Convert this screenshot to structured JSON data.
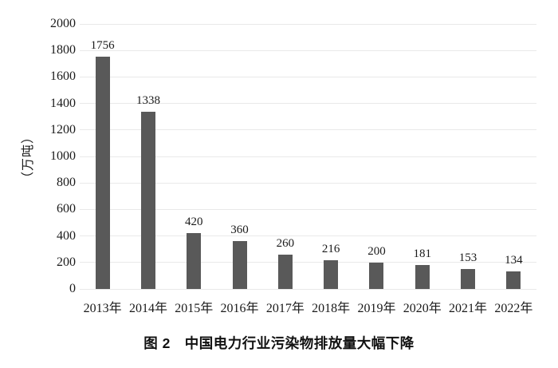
{
  "chart_data": {
    "type": "bar",
    "categories": [
      "2013年",
      "2014年",
      "2015年",
      "2016年",
      "2017年",
      "2018年",
      "2019年",
      "2020年",
      "2021年",
      "2022年"
    ],
    "values": [
      1756,
      1338,
      420,
      360,
      260,
      216,
      200,
      181,
      153,
      134
    ],
    "title": "图 2　中国电力行业污染物排放量大幅下降",
    "xlabel": "",
    "ylabel": "（万吨）",
    "ylim": [
      0,
      2000
    ],
    "ytick_step": 200,
    "grid": true,
    "legend_position": "none",
    "bar_color": "#595959",
    "gridline_color": "#e9e9e9",
    "text_color": "#1a1a1a"
  },
  "caption": {
    "figure_label": "图 2",
    "text": "中国电力行业污染物排放量大幅下降",
    "full": "图 2　中国电力行业污染物排放量大幅下降"
  }
}
